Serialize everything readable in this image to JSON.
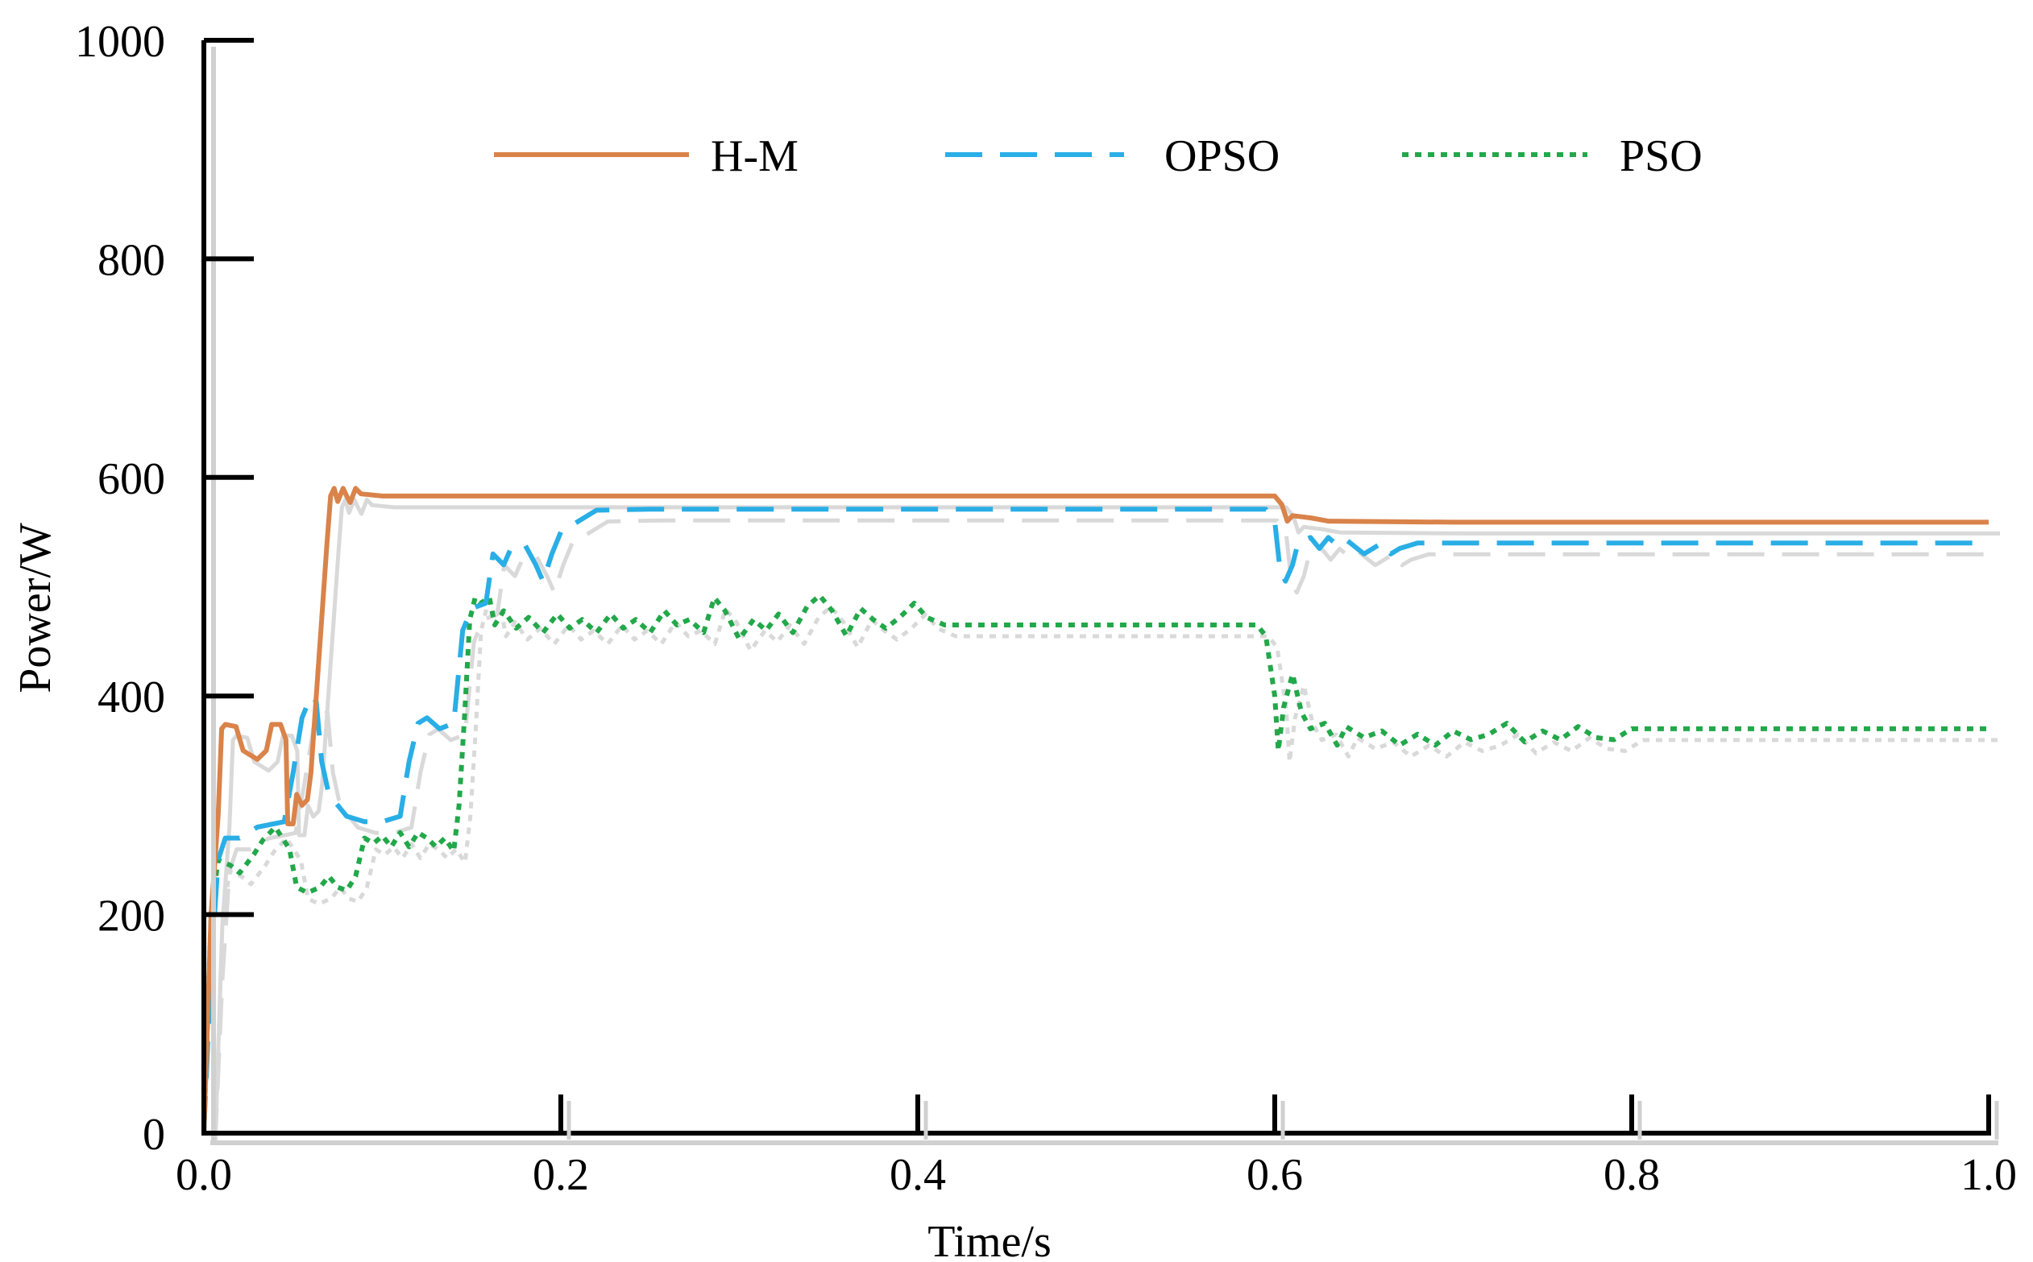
{
  "chart_data": {
    "type": "line",
    "title": "",
    "xlabel": "Time/s",
    "ylabel": "Power/W",
    "xlim": [
      0,
      1.0
    ],
    "ylim": [
      0,
      1000
    ],
    "xticks": [
      0.0,
      0.2,
      0.4,
      0.6,
      0.8,
      1.0
    ],
    "xtick_labels": [
      "0.0",
      "0.2",
      "0.4",
      "0.6",
      "0.8",
      "1.0"
    ],
    "yticks": [
      0,
      200,
      400,
      600,
      800,
      1000
    ],
    "ytick_labels": [
      "0",
      "200",
      "400",
      "600",
      "800",
      "1000"
    ],
    "grid": false,
    "legend_position": "top",
    "series": [
      {
        "name": "H-M",
        "color": "#D9834A",
        "style": "solid",
        "points": [
          [
            0,
            0
          ],
          [
            0.004,
            200
          ],
          [
            0.008,
            290
          ],
          [
            0.01,
            370
          ],
          [
            0.012,
            374
          ],
          [
            0.018,
            372
          ],
          [
            0.022,
            350
          ],
          [
            0.03,
            342
          ],
          [
            0.035,
            350
          ],
          [
            0.038,
            374
          ],
          [
            0.043,
            374
          ],
          [
            0.046,
            360
          ],
          [
            0.047,
            283
          ],
          [
            0.05,
            283
          ],
          [
            0.052,
            310
          ],
          [
            0.055,
            300
          ],
          [
            0.058,
            305
          ],
          [
            0.06,
            330
          ],
          [
            0.063,
            400
          ],
          [
            0.066,
            470
          ],
          [
            0.069,
            540
          ],
          [
            0.071,
            583
          ],
          [
            0.073,
            590
          ],
          [
            0.075,
            578
          ],
          [
            0.078,
            590
          ],
          [
            0.08,
            583
          ],
          [
            0.082,
            577
          ],
          [
            0.085,
            590
          ],
          [
            0.088,
            585
          ],
          [
            0.1,
            583
          ],
          [
            0.3,
            583
          ],
          [
            0.5,
            583
          ],
          [
            0.6,
            583
          ],
          [
            0.604,
            575
          ],
          [
            0.607,
            560
          ],
          [
            0.61,
            565
          ],
          [
            0.62,
            563
          ],
          [
            0.63,
            560
          ],
          [
            0.7,
            559
          ],
          [
            0.8,
            559
          ],
          [
            1.0,
            559
          ]
        ]
      },
      {
        "name": "OPSO",
        "color": "#29AEE6",
        "style": "dashed",
        "points": [
          [
            0,
            0
          ],
          [
            0.004,
            150
          ],
          [
            0.008,
            250
          ],
          [
            0.012,
            270
          ],
          [
            0.02,
            270
          ],
          [
            0.03,
            280
          ],
          [
            0.045,
            285
          ],
          [
            0.05,
            330
          ],
          [
            0.055,
            380
          ],
          [
            0.06,
            400
          ],
          [
            0.063,
            395
          ],
          [
            0.066,
            340
          ],
          [
            0.07,
            310
          ],
          [
            0.08,
            290
          ],
          [
            0.09,
            285
          ],
          [
            0.1,
            285
          ],
          [
            0.11,
            290
          ],
          [
            0.115,
            340
          ],
          [
            0.12,
            375
          ],
          [
            0.125,
            380
          ],
          [
            0.132,
            370
          ],
          [
            0.14,
            375
          ],
          [
            0.145,
            460
          ],
          [
            0.15,
            480
          ],
          [
            0.158,
            485
          ],
          [
            0.162,
            530
          ],
          [
            0.168,
            520
          ],
          [
            0.172,
            535
          ],
          [
            0.18,
            538
          ],
          [
            0.186,
            520
          ],
          [
            0.19,
            505
          ],
          [
            0.195,
            530
          ],
          [
            0.2,
            550
          ],
          [
            0.21,
            560
          ],
          [
            0.22,
            570
          ],
          [
            0.25,
            571
          ],
          [
            0.4,
            571
          ],
          [
            0.595,
            571
          ],
          [
            0.6,
            560
          ],
          [
            0.603,
            515
          ],
          [
            0.606,
            505
          ],
          [
            0.61,
            520
          ],
          [
            0.613,
            540
          ],
          [
            0.62,
            545
          ],
          [
            0.625,
            535
          ],
          [
            0.63,
            545
          ],
          [
            0.635,
            538
          ],
          [
            0.64,
            543
          ],
          [
            0.65,
            530
          ],
          [
            0.66,
            540
          ],
          [
            0.665,
            530
          ],
          [
            0.67,
            535
          ],
          [
            0.68,
            540
          ],
          [
            0.75,
            540
          ],
          [
            1.0,
            540
          ]
        ]
      },
      {
        "name": "PSO",
        "color": "#22A84A",
        "style": "dotted",
        "points": [
          [
            0,
            0
          ],
          [
            0.004,
            200
          ],
          [
            0.008,
            250
          ],
          [
            0.015,
            245
          ],
          [
            0.02,
            238
          ],
          [
            0.028,
            255
          ],
          [
            0.033,
            268
          ],
          [
            0.04,
            280
          ],
          [
            0.048,
            260
          ],
          [
            0.052,
            225
          ],
          [
            0.058,
            220
          ],
          [
            0.065,
            225
          ],
          [
            0.07,
            235
          ],
          [
            0.075,
            225
          ],
          [
            0.08,
            222
          ],
          [
            0.085,
            235
          ],
          [
            0.09,
            270
          ],
          [
            0.095,
            265
          ],
          [
            0.1,
            272
          ],
          [
            0.105,
            262
          ],
          [
            0.11,
            275
          ],
          [
            0.115,
            262
          ],
          [
            0.12,
            275
          ],
          [
            0.125,
            270
          ],
          [
            0.13,
            262
          ],
          [
            0.135,
            270
          ],
          [
            0.14,
            258
          ],
          [
            0.143,
            300
          ],
          [
            0.146,
            380
          ],
          [
            0.149,
            470
          ],
          [
            0.152,
            490
          ],
          [
            0.155,
            485
          ],
          [
            0.16,
            490
          ],
          [
            0.163,
            465
          ],
          [
            0.168,
            478
          ],
          [
            0.175,
            462
          ],
          [
            0.182,
            472
          ],
          [
            0.19,
            458
          ],
          [
            0.198,
            475
          ],
          [
            0.205,
            462
          ],
          [
            0.212,
            470
          ],
          [
            0.22,
            458
          ],
          [
            0.228,
            475
          ],
          [
            0.235,
            462
          ],
          [
            0.242,
            470
          ],
          [
            0.25,
            458
          ],
          [
            0.258,
            478
          ],
          [
            0.265,
            465
          ],
          [
            0.272,
            470
          ],
          [
            0.28,
            458
          ],
          [
            0.286,
            490
          ],
          [
            0.292,
            478
          ],
          [
            0.3,
            452
          ],
          [
            0.308,
            470
          ],
          [
            0.315,
            460
          ],
          [
            0.322,
            475
          ],
          [
            0.33,
            458
          ],
          [
            0.338,
            482
          ],
          [
            0.345,
            492
          ],
          [
            0.352,
            478
          ],
          [
            0.36,
            455
          ],
          [
            0.368,
            480
          ],
          [
            0.375,
            470
          ],
          [
            0.382,
            462
          ],
          [
            0.39,
            472
          ],
          [
            0.398,
            485
          ],
          [
            0.405,
            472
          ],
          [
            0.415,
            465
          ],
          [
            0.5,
            465
          ],
          [
            0.59,
            465
          ],
          [
            0.595,
            455
          ],
          [
            0.6,
            400
          ],
          [
            0.602,
            350
          ],
          [
            0.605,
            390
          ],
          [
            0.61,
            420
          ],
          [
            0.615,
            385
          ],
          [
            0.62,
            370
          ],
          [
            0.628,
            375
          ],
          [
            0.635,
            355
          ],
          [
            0.64,
            372
          ],
          [
            0.65,
            362
          ],
          [
            0.66,
            368
          ],
          [
            0.67,
            355
          ],
          [
            0.68,
            365
          ],
          [
            0.69,
            355
          ],
          [
            0.7,
            368
          ],
          [
            0.71,
            360
          ],
          [
            0.72,
            365
          ],
          [
            0.73,
            375
          ],
          [
            0.74,
            358
          ],
          [
            0.75,
            368
          ],
          [
            0.76,
            360
          ],
          [
            0.77,
            372
          ],
          [
            0.78,
            362
          ],
          [
            0.79,
            360
          ],
          [
            0.8,
            370
          ],
          [
            0.82,
            370
          ],
          [
            1.0,
            370
          ]
        ]
      }
    ]
  }
}
